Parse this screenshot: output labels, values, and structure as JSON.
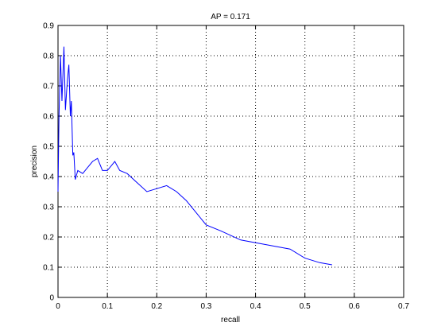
{
  "chart_data": {
    "type": "line",
    "title": "AP = 0.171",
    "xlabel": "recall",
    "ylabel": "precision",
    "x": [
      0,
      0.002,
      0.005,
      0.008,
      0.012,
      0.015,
      0.019,
      0.022,
      0.025,
      0.027,
      0.03,
      0.032,
      0.035,
      0.04,
      0.05,
      0.06,
      0.07,
      0.08,
      0.085,
      0.09,
      0.1,
      0.115,
      0.125,
      0.14,
      0.16,
      0.18,
      0.2,
      0.22,
      0.24,
      0.26,
      0.28,
      0.3,
      0.33,
      0.37,
      0.42,
      0.47,
      0.5,
      0.53,
      0.555
    ],
    "values": [
      0.35,
      0.6,
      0.8,
      0.65,
      0.83,
      0.62,
      0.72,
      0.77,
      0.6,
      0.65,
      0.47,
      0.48,
      0.39,
      0.42,
      0.41,
      0.43,
      0.45,
      0.46,
      0.44,
      0.42,
      0.42,
      0.45,
      0.42,
      0.41,
      0.38,
      0.35,
      0.36,
      0.37,
      0.35,
      0.32,
      0.28,
      0.24,
      0.22,
      0.19,
      0.175,
      0.16,
      0.13,
      0.115,
      0.108
    ],
    "color": "#0000ff",
    "xlim": [
      0,
      0.7
    ],
    "xticks": [
      0,
      0.1,
      0.2,
      0.3,
      0.4,
      0.5,
      0.6,
      0.7
    ],
    "ylim": [
      0,
      0.9
    ],
    "yticks": [
      0,
      0.1,
      0.2,
      0.3,
      0.4,
      0.5,
      0.6,
      0.7,
      0.8,
      0.9
    ],
    "grid": true
  }
}
